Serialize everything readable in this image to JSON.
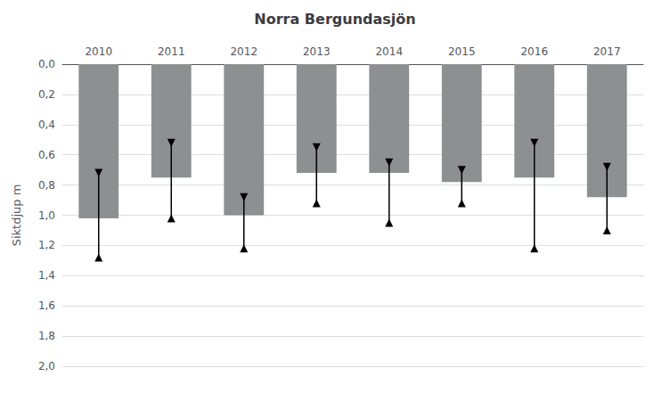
{
  "chart_data": {
    "type": "bar",
    "title": "Norra Bergundasjön",
    "ylabel": "Siktdjup m",
    "categories": [
      "2010",
      "2011",
      "2012",
      "2013",
      "2014",
      "2015",
      "2016",
      "2017"
    ],
    "values": [
      1.02,
      0.75,
      1.0,
      0.72,
      0.72,
      0.78,
      0.75,
      0.88
    ],
    "error_upper": [
      0.72,
      0.52,
      0.88,
      0.55,
      0.65,
      0.7,
      0.52,
      0.68
    ],
    "error_lower": [
      1.28,
      1.02,
      1.22,
      0.92,
      1.05,
      0.92,
      1.22,
      1.1
    ],
    "color": "#8c9090",
    "ylim": [
      2.0,
      0.0
    ],
    "yticks": [
      {
        "value": 0.0,
        "label": "0,0"
      },
      {
        "value": 0.2,
        "label": "0,2"
      },
      {
        "value": 0.4,
        "label": "0,4"
      },
      {
        "value": 0.6,
        "label": "0,6"
      },
      {
        "value": 0.8,
        "label": "0,8"
      },
      {
        "value": 1.0,
        "label": "1,0"
      },
      {
        "value": 1.2,
        "label": "1,2"
      },
      {
        "value": 1.4,
        "label": "1,4"
      },
      {
        "value": 1.6,
        "label": "1,6"
      },
      {
        "value": 1.8,
        "label": "1,8"
      },
      {
        "value": 2.0,
        "label": "2,0"
      }
    ],
    "grid": true
  }
}
